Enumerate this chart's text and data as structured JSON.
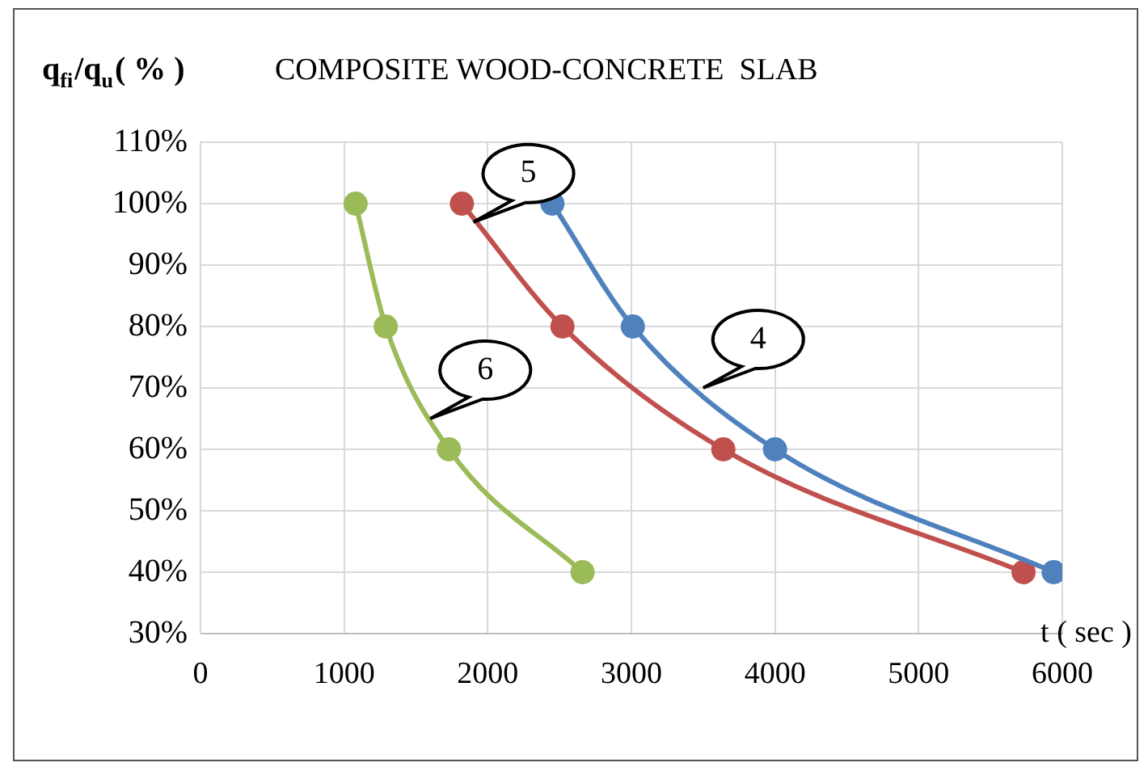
{
  "chart_data": {
    "type": "line",
    "title": "COMPOSITE WOOD-CONCRETE  SLAB",
    "xlabel": "t ( sec )",
    "ylabel": "q$_{fi}$/q$_{u}$( % )",
    "series": [
      {
        "color": "#4f81bd",
        "x": [
          2450,
          3010,
          4000,
          5940
        ],
        "values": [
          100,
          80,
          60,
          40
        ]
      },
      {
        "color": "#c0504d",
        "x": [
          1820,
          2520,
          3640,
          5730
        ],
        "values": [
          100,
          80,
          60,
          40
        ]
      },
      {
        "color": "#9bbb59",
        "x": [
          1080,
          1290,
          1730,
          2660
        ],
        "values": [
          100,
          80,
          60,
          40
        ]
      }
    ],
    "xlim": [
      0,
      6000
    ],
    "xticks": [
      0,
      1000,
      2000,
      3000,
      4000,
      5000,
      6000
    ],
    "ylim": [
      30,
      110
    ],
    "yticks": [
      {
        "value": 30,
        "label": "30%"
      },
      {
        "value": 40,
        "label": "40%"
      },
      {
        "value": 50,
        "label": "50%"
      },
      {
        "value": 60,
        "label": "60%"
      },
      {
        "value": 70,
        "label": "70%"
      },
      {
        "value": 80,
        "label": "80%"
      },
      {
        "value": 90,
        "label": "90%"
      },
      {
        "value": 100,
        "label": "100%"
      },
      {
        "value": 110,
        "label": "110%"
      }
    ],
    "annotations": [
      {
        "text": "5",
        "x": 1900,
        "y": 97
      },
      {
        "text": "4",
        "x": 3500,
        "y": 70
      },
      {
        "text": "6",
        "x": 1600,
        "y": 65
      }
    ],
    "grid": true,
    "marker": "circle",
    "line_style": "solid",
    "legend": false
  }
}
